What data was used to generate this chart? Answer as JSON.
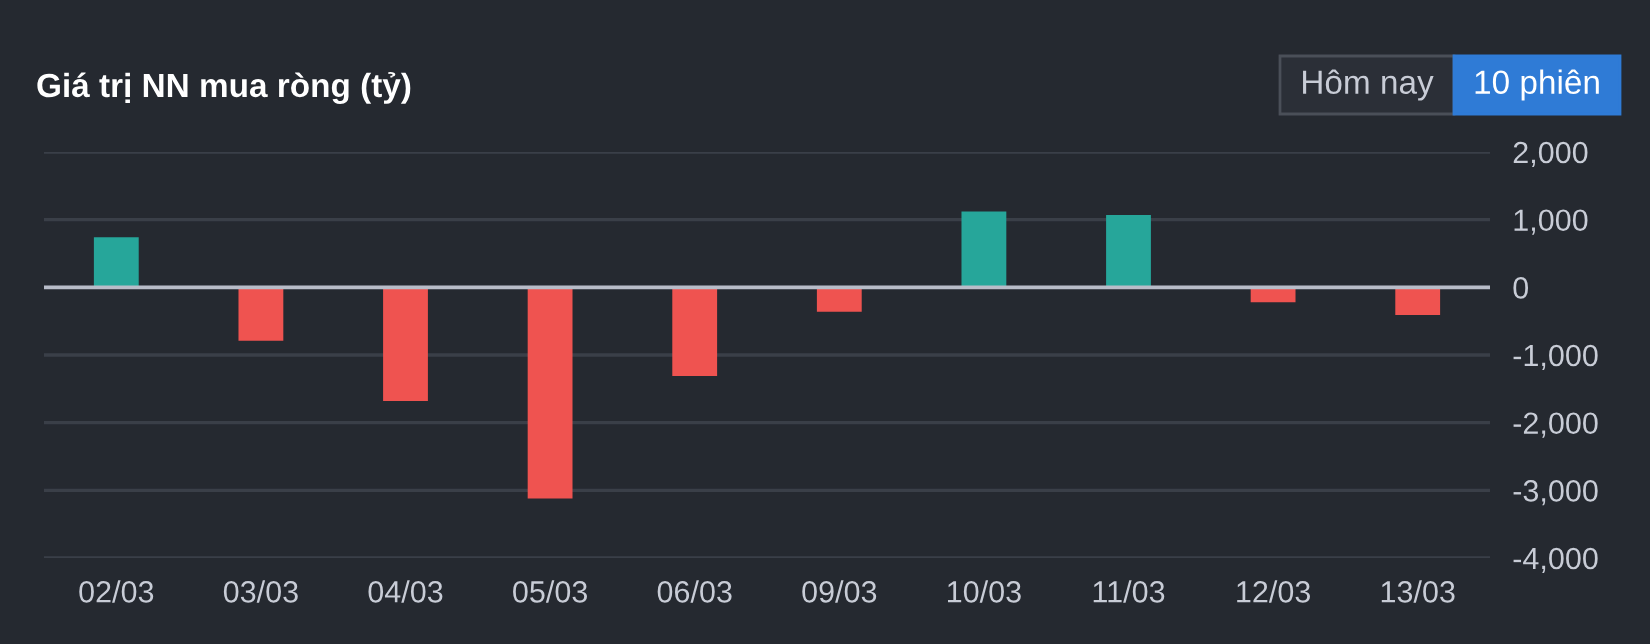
{
  "chart_data": {
    "type": "bar",
    "title": "Giá trị NN mua ròng (tỷ)",
    "annotations": [
      "Hôm nay",
      "10 phiên"
    ],
    "categories": [
      "02/03",
      "03/03",
      "04/03",
      "05/03",
      "06/03",
      "09/03",
      "10/03",
      "11/03",
      "12/03",
      "13/03"
    ],
    "values": [
      740,
      -790,
      -1680,
      -3120,
      -1310,
      -360,
      1120,
      1070,
      -220,
      -410
    ],
    "colors": [
      "#26a69a",
      "#ef5350",
      "#ef5350",
      "#ef5350",
      "#ef5350",
      "#ef5350",
      "#26a69a",
      "#26a69a",
      "#ef5350",
      "#ef5350"
    ],
    "ylim": [
      -4000,
      2000
    ],
    "yticks": [
      {
        "value": -4000,
        "label": "-4,000"
      },
      {
        "value": -3000,
        "label": "-3,000"
      },
      {
        "value": -2000,
        "label": "-2,000"
      },
      {
        "value": -1000,
        "label": "-1,000"
      },
      0,
      {
        "value": 1000,
        "label": "1,000"
      },
      {
        "value": 2000,
        "label": "2,000"
      }
    ],
    "ref_lines": [
      {
        "axis": "y",
        "value": 0,
        "color": "#b8bcc8"
      }
    ],
    "grid": "y",
    "legend": false
  }
}
